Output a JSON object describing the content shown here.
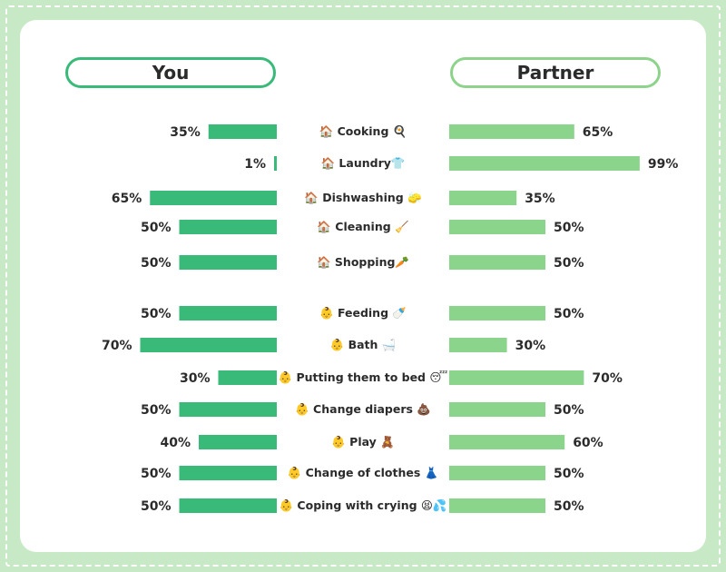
{
  "headers": {
    "you": "You",
    "partner": "Partner"
  },
  "colors": {
    "you_bar": "#3aba79",
    "partner_bar": "#8ad48c",
    "background": "#c8e9c6"
  },
  "chart_data": {
    "type": "bar",
    "orientation": "horizontal-diverging",
    "series_names": [
      "You",
      "Partner"
    ],
    "value_range": [
      0,
      100
    ],
    "groups": [
      {
        "rows": [
          {
            "label": "🏠 Cooking 🍳",
            "you": 35,
            "you_label": "35%",
            "partner": 65,
            "partner_label": "65%"
          },
          {
            "label": "🏠 Laundry👕",
            "you": 1,
            "you_label": "1%",
            "partner": 99,
            "partner_label": "99%"
          },
          {
            "label": "🏠 Dishwashing 🧽",
            "you": 65,
            "you_label": "65%",
            "partner": 35,
            "partner_label": "35%"
          },
          {
            "label": "🏠 Cleaning 🧹",
            "you": 50,
            "you_label": "50%",
            "partner": 50,
            "partner_label": "50%"
          },
          {
            "label": "🏠 Shopping🥕",
            "you": 50,
            "you_label": "50%",
            "partner": 50,
            "partner_label": "50%"
          }
        ]
      },
      {
        "rows": [
          {
            "label": "👶 Feeding 🍼",
            "you": 50,
            "you_label": "50%",
            "partner": 50,
            "partner_label": "50%"
          },
          {
            "label": "👶 Bath 🛁",
            "you": 70,
            "you_label": "70%",
            "partner": 30,
            "partner_label": "30%"
          },
          {
            "label": "👶 Putting them to bed 😴",
            "you": 30,
            "you_label": "30%",
            "partner": 70,
            "partner_label": "70%"
          },
          {
            "label": "👶 Change diapers 💩",
            "you": 50,
            "you_label": "50%",
            "partner": 50,
            "partner_label": "50%"
          },
          {
            "label": "👶 Play 🧸",
            "you": 40,
            "you_label": "40%",
            "partner": 60,
            "partner_label": "60%"
          },
          {
            "label": "👶 Change of clothes 👗",
            "you": 50,
            "you_label": "50%",
            "partner": 50,
            "partner_label": "50%"
          },
          {
            "label": "👶 Coping with crying 😫💦",
            "you": 50,
            "you_label": "50%",
            "partner": 50,
            "partner_label": "50%"
          }
        ]
      }
    ]
  }
}
